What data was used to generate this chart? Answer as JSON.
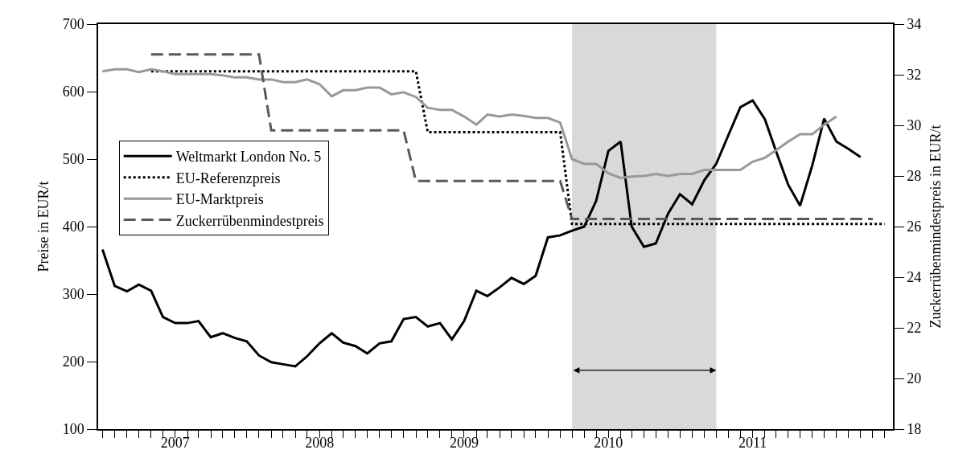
{
  "chart_data": {
    "type": "line",
    "ylabel": "Preise in EUR/t",
    "y2label": "Zuckerrübenmindestpreis in EUR/t",
    "x": [
      "2006-07",
      "2006-08",
      "2006-09",
      "2006-10",
      "2006-11",
      "2006-12",
      "2007-01",
      "2007-02",
      "2007-03",
      "2007-04",
      "2007-05",
      "2007-06",
      "2007-07",
      "2007-08",
      "2007-09",
      "2007-10",
      "2007-11",
      "2007-12",
      "2008-01",
      "2008-02",
      "2008-03",
      "2008-04",
      "2008-05",
      "2008-06",
      "2008-07",
      "2008-08",
      "2008-09",
      "2008-10",
      "2008-11",
      "2008-12",
      "2009-01",
      "2009-02",
      "2009-03",
      "2009-04",
      "2009-05",
      "2009-06",
      "2009-07",
      "2009-08",
      "2009-09",
      "2009-10",
      "2009-11",
      "2009-12",
      "2010-01",
      "2010-02",
      "2010-03",
      "2010-04",
      "2010-05",
      "2010-06",
      "2010-07",
      "2010-08",
      "2010-09",
      "2010-10",
      "2010-11",
      "2010-12",
      "2011-01",
      "2011-02",
      "2011-03",
      "2011-04",
      "2011-05",
      "2011-06",
      "2011-07",
      "2011-08",
      "2011-09",
      "2011-10",
      "2011-11",
      "2011-12"
    ],
    "series": [
      {
        "name": "Weltmarkt London No. 5",
        "color": "#000000",
        "line_style": "solid",
        "values": [
          366,
          312,
          304,
          314,
          305,
          266,
          257,
          257,
          260,
          236,
          242,
          235,
          230,
          209,
          199,
          196,
          193,
          208,
          227,
          242,
          228,
          223,
          212,
          227,
          230,
          263,
          266,
          252,
          257,
          233,
          260,
          305,
          297,
          310,
          324,
          315,
          327,
          384,
          387,
          394,
          400,
          438,
          512,
          526,
          400,
          370,
          375,
          419,
          448,
          433,
          469,
          493,
          536,
          577,
          587,
          559,
          512,
          462,
          431,
          491,
          560,
          526,
          515,
          503,
          null,
          null
        ]
      },
      {
        "name": "EU-Referenzpreis",
        "color": "#000000",
        "line_style": "dotted",
        "values": [
          null,
          null,
          null,
          null,
          630,
          630,
          630,
          630,
          630,
          630,
          630,
          630,
          630,
          630,
          630,
          630,
          630,
          630,
          630,
          630,
          630,
          630,
          630,
          630,
          630,
          630,
          630,
          540,
          540,
          540,
          540,
          540,
          540,
          540,
          540,
          540,
          540,
          540,
          540,
          404,
          404,
          404,
          404,
          404,
          404,
          404,
          404,
          404,
          404,
          404,
          404,
          404,
          404,
          404,
          404,
          404,
          404,
          404,
          404,
          404,
          404,
          404,
          404,
          404,
          404,
          404
        ]
      },
      {
        "name": "EU-Marktpreis",
        "color": "#999999",
        "line_style": "solid",
        "values": [
          630,
          633,
          633,
          629,
          633,
          630,
          626,
          626,
          626,
          626,
          624,
          621,
          621,
          618,
          618,
          614,
          614,
          618,
          611,
          593,
          602,
          602,
          606,
          606,
          596,
          599,
          592,
          576,
          573,
          573,
          563,
          551,
          566,
          563,
          566,
          564,
          561,
          561,
          554,
          500,
          493,
          493,
          479,
          472,
          474,
          475,
          478,
          475,
          478,
          478,
          484,
          484,
          484,
          484,
          496,
          502,
          513,
          526,
          537,
          537,
          551,
          563,
          null,
          null,
          null,
          null
        ]
      },
      {
        "name": "Zuckerrübenmindestpreis",
        "color": "#595959",
        "line_style": "dashed",
        "axis": "y2",
        "values": [
          null,
          null,
          null,
          null,
          32.8,
          32.8,
          32.8,
          32.8,
          32.8,
          32.8,
          32.8,
          32.8,
          32.8,
          32.8,
          29.8,
          29.8,
          29.8,
          29.8,
          29.8,
          29.8,
          29.8,
          29.8,
          29.8,
          29.8,
          29.8,
          29.8,
          27.8,
          27.8,
          27.8,
          27.8,
          27.8,
          27.8,
          27.8,
          27.8,
          27.8,
          27.8,
          27.8,
          27.8,
          27.8,
          26.3,
          26.3,
          26.3,
          26.3,
          26.3,
          26.3,
          26.3,
          26.3,
          26.3,
          26.3,
          26.3,
          26.3,
          26.3,
          26.3,
          26.3,
          26.3,
          26.3,
          26.3,
          26.3,
          26.3,
          26.3,
          26.3,
          26.3,
          26.3,
          26.3,
          26.3,
          null
        ]
      }
    ],
    "bands": [
      {
        "axis": "x",
        "from": "2009-10",
        "to": "2010-10",
        "color": "#d9d9d9"
      }
    ],
    "xlim": [
      "2006-06-20",
      "2011-12-22"
    ],
    "xticks": [
      {
        "value": "2007",
        "label": "2007"
      },
      {
        "value": "2008",
        "label": "2008"
      },
      {
        "value": "2009",
        "label": "2009"
      },
      {
        "value": "2010",
        "label": "2010"
      },
      {
        "value": "2011",
        "label": "2011"
      },
      {
        "value": "2006-07",
        "label": null
      },
      {
        "value": "2006-08",
        "label": null
      },
      {
        "value": "2006-09",
        "label": null
      },
      {
        "value": "2006-10",
        "label": null
      },
      {
        "value": "2006-11",
        "label": null
      },
      {
        "value": "2006-12",
        "label": null
      },
      {
        "value": "2007-01",
        "label": null
      },
      {
        "value": "2007-02",
        "label": null
      },
      {
        "value": "2007-03",
        "label": null
      },
      {
        "value": "2007-04",
        "label": null
      },
      {
        "value": "2007-05",
        "label": null
      },
      {
        "value": "2007-06",
        "label": null
      },
      {
        "value": "2007-07",
        "label": null
      },
      {
        "value": "2007-08",
        "label": null
      },
      {
        "value": "2007-09",
        "label": null
      },
      {
        "value": "2007-10",
        "label": null
      },
      {
        "value": "2007-11",
        "label": null
      },
      {
        "value": "2007-12",
        "label": null
      },
      {
        "value": "2008-01",
        "label": null
      },
      {
        "value": "2008-02",
        "label": null
      },
      {
        "value": "2008-03",
        "label": null
      },
      {
        "value": "2008-04",
        "label": null
      },
      {
        "value": "2008-05",
        "label": null
      },
      {
        "value": "2008-06",
        "label": null
      },
      {
        "value": "2008-07",
        "label": null
      },
      {
        "value": "2008-08",
        "label": null
      },
      {
        "value": "2008-09",
        "label": null
      },
      {
        "value": "2008-10",
        "label": null
      },
      {
        "value": "2008-11",
        "label": null
      },
      {
        "value": "2008-12",
        "label": null
      },
      {
        "value": "2009-01",
        "label": null
      },
      {
        "value": "2009-02",
        "label": null
      },
      {
        "value": "2009-03",
        "label": null
      },
      {
        "value": "2009-04",
        "label": null
      },
      {
        "value": "2009-05",
        "label": null
      },
      {
        "value": "2009-06",
        "label": null
      },
      {
        "value": "2009-07",
        "label": null
      },
      {
        "value": "2009-08",
        "label": null
      },
      {
        "value": "2009-09",
        "label": null
      },
      {
        "value": "2009-10",
        "label": null
      },
      {
        "value": "2009-11",
        "label": null
      },
      {
        "value": "2009-12",
        "label": null
      },
      {
        "value": "2010-01",
        "label": null
      },
      {
        "value": "2010-02",
        "label": null
      },
      {
        "value": "2010-03",
        "label": null
      },
      {
        "value": "2010-04",
        "label": null
      },
      {
        "value": "2010-05",
        "label": null
      },
      {
        "value": "2010-06",
        "label": null
      },
      {
        "value": "2010-07",
        "label": null
      },
      {
        "value": "2010-08",
        "label": null
      },
      {
        "value": "2010-09",
        "label": null
      },
      {
        "value": "2010-10",
        "label": null
      },
      {
        "value": "2010-11",
        "label": null
      },
      {
        "value": "2010-12",
        "label": null
      },
      {
        "value": "2011-01",
        "label": null
      },
      {
        "value": "2011-02",
        "label": null
      },
      {
        "value": "2011-03",
        "label": null
      },
      {
        "value": "2011-04",
        "label": null
      },
      {
        "value": "2011-05",
        "label": null
      },
      {
        "value": "2011-06",
        "label": null
      },
      {
        "value": "2011-07",
        "label": null
      },
      {
        "value": "2011-08",
        "label": null
      },
      {
        "value": "2011-09",
        "label": null
      },
      {
        "value": "2011-10",
        "label": null
      },
      {
        "value": "2011-11",
        "label": null
      },
      {
        "value": "2011-12",
        "label": null
      }
    ],
    "ylim": [
      100,
      700
    ],
    "yticks": [
      100,
      200,
      300,
      400,
      500,
      600,
      700
    ],
    "y2lim": [
      18,
      34
    ],
    "y2ticks": [
      18,
      20,
      22,
      24,
      26,
      28,
      30,
      32,
      34
    ],
    "grid": false,
    "legend": "left",
    "marker": "none"
  }
}
